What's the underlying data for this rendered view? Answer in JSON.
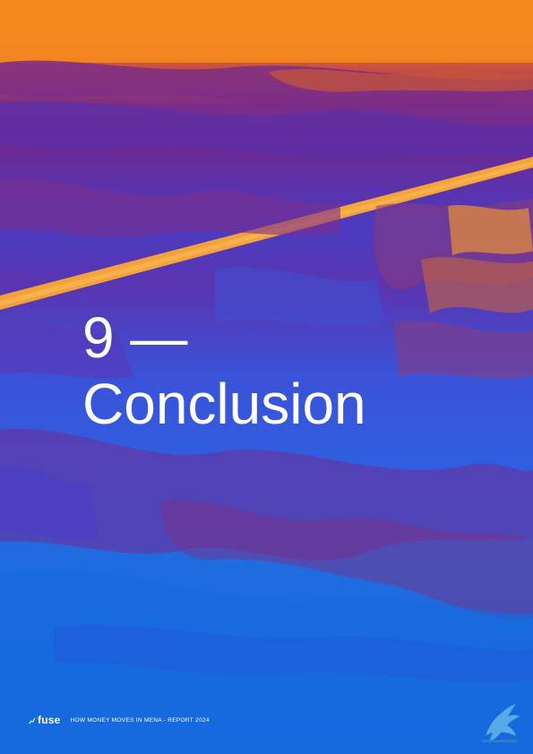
{
  "chapter": {
    "number_line": "9 —",
    "title": "Conclusion"
  },
  "footer": {
    "logo_text": "fuse",
    "report_title": "HOW MONEY MOVES IN MENA - REPORT 2024"
  },
  "colors": {
    "orange": "#f7891c",
    "purple": "#6a2a96",
    "blue": "#1668dc",
    "text": "#ffffff"
  },
  "icons": {
    "logo_mark": "fuse-logo-icon",
    "corner": "bird-watermark-icon"
  }
}
